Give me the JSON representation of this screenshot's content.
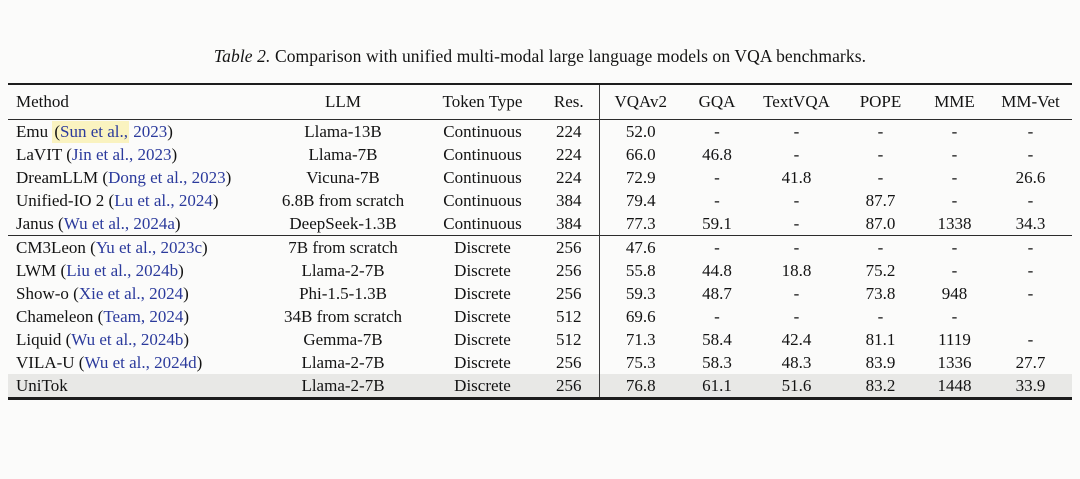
{
  "caption": {
    "label": "Table 2.",
    "text": "Comparison with unified multi-modal large language models on VQA benchmarks."
  },
  "colors": {
    "citation_blue": "#2b3a9c",
    "highlight_yellow": "#faf3c0",
    "highlight_row_gray": "#e8e8e6",
    "rule_dark": "#1d1d1d"
  },
  "table": {
    "columns": [
      {
        "key": "method",
        "label": "Method"
      },
      {
        "key": "llm",
        "label": "LLM"
      },
      {
        "key": "token",
        "label": "Token Type"
      },
      {
        "key": "res",
        "label": "Res."
      },
      {
        "key": "vqav2",
        "label": "VQAv2"
      },
      {
        "key": "gqa",
        "label": "GQA"
      },
      {
        "key": "textvqa",
        "label": "TextVQA"
      },
      {
        "key": "pope",
        "label": "POPE"
      },
      {
        "key": "mme",
        "label": "MME"
      },
      {
        "key": "mmvet",
        "label": "MM-Vet"
      }
    ],
    "groups": [
      {
        "rows": [
          {
            "method": "Emu",
            "cite_hl": "Sun et al.,",
            "cite_rest": "2023",
            "llm": "Llama-13B",
            "token": "Continuous",
            "res": "224",
            "values": [
              "52.0",
              "-",
              "-",
              "-",
              "-",
              "-"
            ]
          },
          {
            "method": "LaVIT",
            "cite": "Jin et al., 2023",
            "llm": "Llama-7B",
            "token": "Continuous",
            "res": "224",
            "values": [
              "66.0",
              "46.8",
              "-",
              "-",
              "-",
              "-"
            ]
          },
          {
            "method": "DreamLLM",
            "cite": "Dong et al., 2023",
            "llm": "Vicuna-7B",
            "token": "Continuous",
            "res": "224",
            "values": [
              "72.9",
              "-",
              "41.8",
              "-",
              "-",
              "26.6"
            ]
          },
          {
            "method": "Unified-IO 2",
            "cite": "Lu et al., 2024",
            "llm": "6.8B from scratch",
            "token": "Continuous",
            "res": "384",
            "values": [
              "79.4",
              "-",
              "-",
              "87.7",
              "-",
              "-"
            ]
          },
          {
            "method": "Janus",
            "cite": "Wu et al., 2024a",
            "llm": "DeepSeek-1.3B",
            "token": "Continuous",
            "res": "384",
            "values": [
              "77.3",
              "59.1",
              "-",
              "87.0",
              "1338",
              "34.3"
            ]
          }
        ]
      },
      {
        "rows": [
          {
            "method": "CM3Leon",
            "cite": "Yu et al., 2023c",
            "llm": "7B from scratch",
            "token": "Discrete",
            "res": "256",
            "values": [
              "47.6",
              "-",
              "-",
              "-",
              "-",
              "-"
            ]
          },
          {
            "method": "LWM",
            "cite": "Liu et al., 2024b",
            "llm": "Llama-2-7B",
            "token": "Discrete",
            "res": "256",
            "values": [
              "55.8",
              "44.8",
              "18.8",
              "75.2",
              "-",
              "-"
            ]
          },
          {
            "method": "Show-o",
            "cite": "Xie et al., 2024",
            "llm": "Phi-1.5-1.3B",
            "token": "Discrete",
            "res": "256",
            "values": [
              "59.3",
              "48.7",
              "-",
              "73.8",
              "948",
              "-"
            ]
          },
          {
            "method": "Chameleon",
            "cite": "Team, 2024",
            "llm": "34B from scratch",
            "token": "Discrete",
            "res": "512",
            "values": [
              "69.6",
              "-",
              "-",
              "-",
              "-",
              ""
            ]
          },
          {
            "method": "Liquid",
            "cite": "Wu et al., 2024b",
            "llm": "Gemma-7B",
            "token": "Discrete",
            "res": "512",
            "values": [
              "71.3",
              "58.4",
              "42.4",
              "81.1",
              "1119",
              "-"
            ]
          },
          {
            "method": "VILA-U",
            "cite": "Wu et al., 2024d",
            "llm": "Llama-2-7B",
            "token": "Discrete",
            "res": "256",
            "values": [
              "75.3",
              "58.3",
              "48.3",
              "83.9",
              "1336",
              "27.7"
            ]
          },
          {
            "method": "UniTok",
            "llm": "Llama-2-7B",
            "token": "Discrete",
            "res": "256",
            "values": [
              "76.8",
              "61.1",
              "51.6",
              "83.2",
              "1448",
              "33.9"
            ],
            "row_highlight": true
          }
        ]
      }
    ]
  }
}
